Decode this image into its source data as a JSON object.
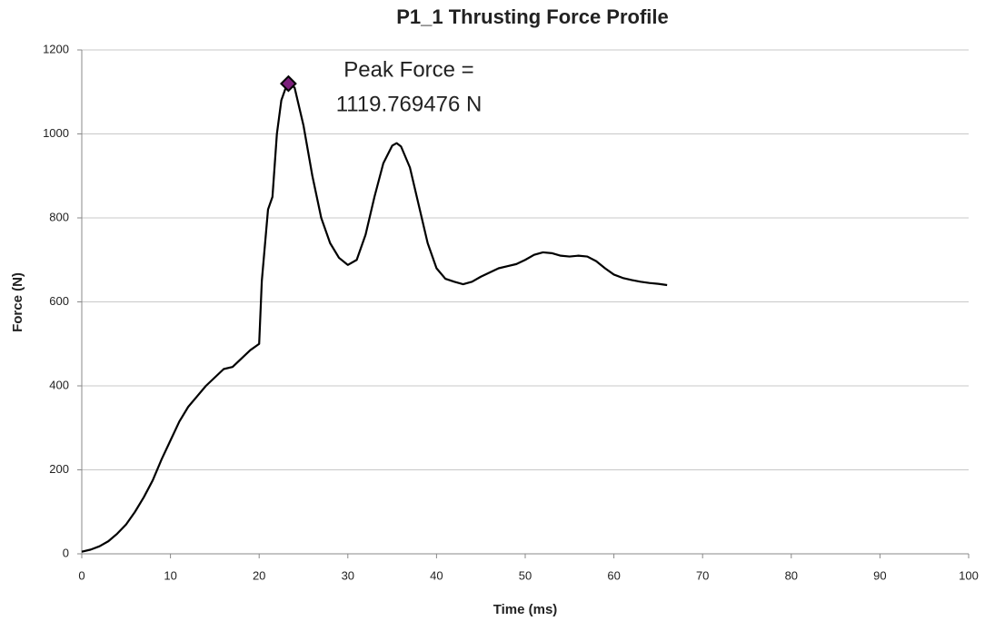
{
  "chart_data": {
    "type": "line",
    "title": "P1_1 Thrusting Force Profile",
    "x_label": "Time (ms)",
    "y_label": "Force (N)",
    "x": [
      0,
      1,
      2,
      3,
      4,
      5,
      6,
      7,
      8,
      9,
      10,
      11,
      12,
      13,
      14,
      15,
      16,
      17,
      18,
      19,
      20,
      20.3,
      21,
      21.5,
      22,
      22.5,
      23,
      23.5,
      24,
      25,
      26,
      27,
      28,
      29,
      30,
      31,
      32,
      33,
      34,
      35,
      35.5,
      36,
      37,
      38,
      39,
      40,
      41,
      42,
      43,
      44,
      45,
      46,
      47,
      48,
      49,
      50,
      51,
      52,
      53,
      54,
      55,
      56,
      57,
      58,
      59,
      60,
      61,
      62,
      63,
      64,
      65,
      66
    ],
    "series": [
      {
        "name": "Force",
        "color": "#000000",
        "values": [
          5,
          10,
          18,
          30,
          48,
          70,
          100,
          135,
          175,
          225,
          270,
          315,
          350,
          375,
          400,
          420,
          440,
          445,
          465,
          485,
          500,
          650,
          820,
          850,
          1000,
          1080,
          1110,
          1119,
          1110,
          1020,
          900,
          800,
          740,
          705,
          688,
          700,
          760,
          850,
          930,
          972,
          978,
          970,
          920,
          830,
          740,
          680,
          655,
          648,
          642,
          648,
          660,
          670,
          680,
          685,
          690,
          700,
          712,
          718,
          716,
          710,
          708,
          710,
          708,
          697,
          680,
          665,
          657,
          652,
          648,
          645,
          643,
          640
        ]
      }
    ],
    "peak": {
      "x": 23.3,
      "y": 1119.769476,
      "color": "#7b1f7b"
    },
    "annotation": [
      "Peak Force =",
      "1119.769476 N"
    ],
    "xlim": [
      0,
      100
    ],
    "xticks": [
      0,
      10,
      20,
      30,
      40,
      50,
      60,
      70,
      80,
      90,
      100
    ],
    "ylim": [
      0,
      1200
    ],
    "yticks": [
      0,
      200,
      400,
      600,
      800,
      1000,
      1200
    ],
    "grid": true
  }
}
